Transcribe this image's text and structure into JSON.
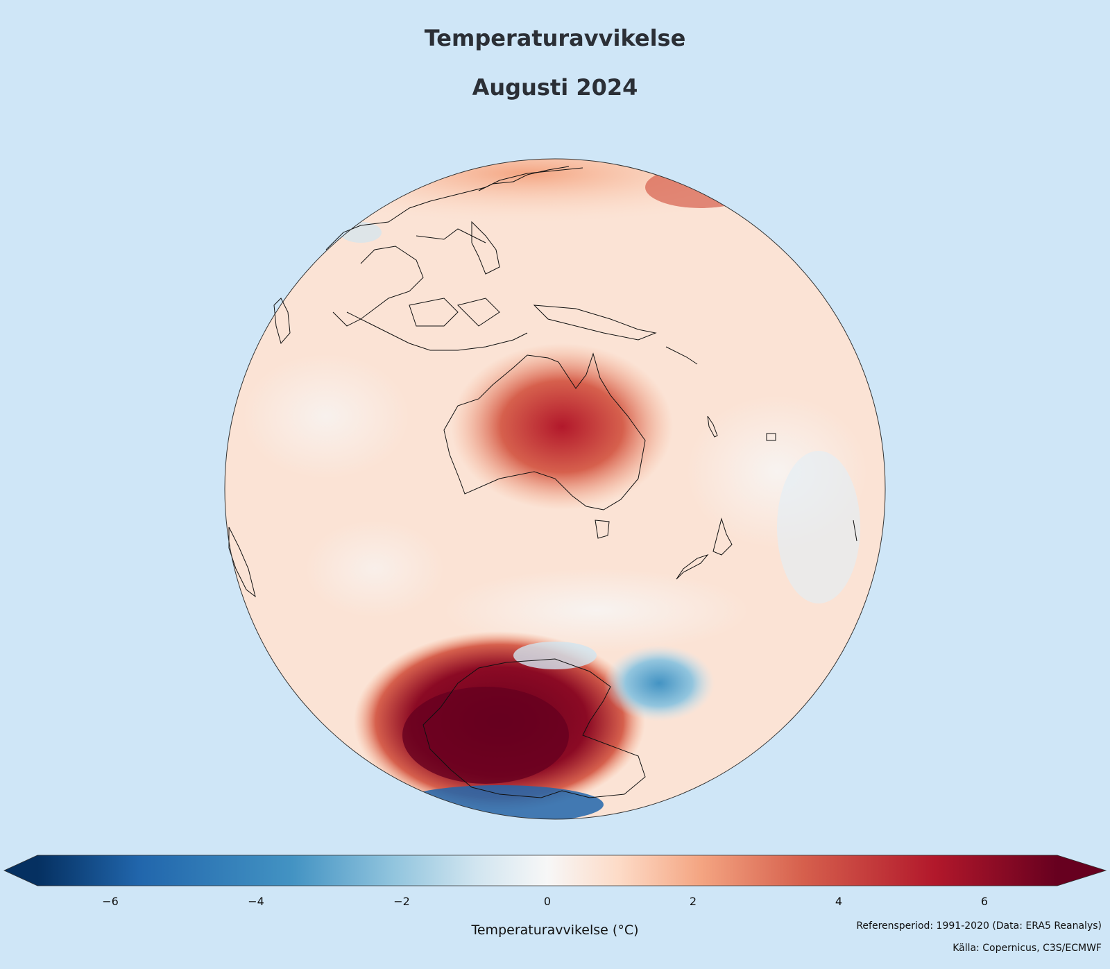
{
  "title": "Temperaturavvikelse",
  "subtitle": "Augusti 2024",
  "colors": {
    "background": "#cfe6f7",
    "colormap": [
      "#053061",
      "#2166ac",
      "#4393c3",
      "#92c5de",
      "#d1e5f0",
      "#f7f7f7",
      "#fddbc7",
      "#f4a582",
      "#d6604d",
      "#b2182b",
      "#67001f"
    ]
  },
  "colorbar": {
    "label": "Temperaturavvikelse (°C)",
    "range": [
      -7,
      7
    ],
    "ticks": [
      "−6",
      "−4",
      "−2",
      "0",
      "2",
      "4",
      "6"
    ],
    "tick_values": [
      -6,
      -4,
      -2,
      0,
      2,
      4,
      6
    ],
    "extend": "both"
  },
  "notes": {
    "reference": "Referensperiod: 1991-2020 (Data: ERA5 Reanalys)",
    "source": "Källa: Copernicus, C3S/ECMWF"
  }
}
